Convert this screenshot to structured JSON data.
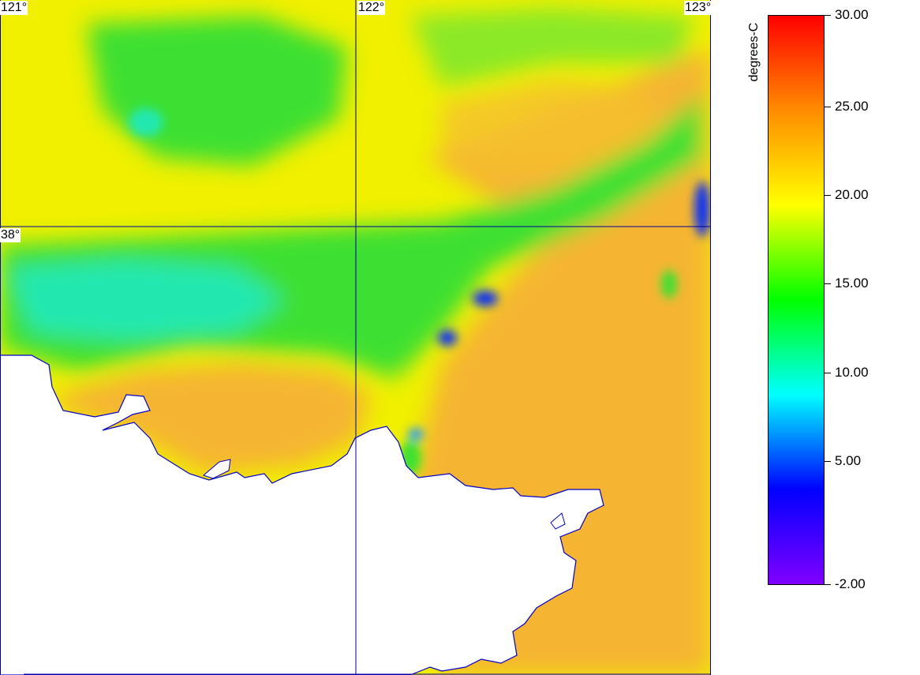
{
  "map": {
    "grid_labels": {
      "lon_121": "121°",
      "lon_122": "122°",
      "lon_123": "123°",
      "lat_38": "38°"
    },
    "colors": {
      "land": "#ffffff",
      "coastline": "#0000c8",
      "gridline": "#0000a0",
      "ocean_warm": "#f5b530",
      "ocean_mid": "#f0f000",
      "ocean_cool": "#3ee030",
      "ocean_cold": "#20e8b0",
      "upwelling": "#1030f0"
    }
  },
  "colorbar": {
    "units": "degrees-C",
    "ticks": [
      "30.00",
      "25.00",
      "20.00",
      "15.00",
      "10.00",
      "5.00",
      "-2.00"
    ],
    "range": [
      -2,
      30
    ],
    "gradient": [
      "#ff0000",
      "#ff8c00",
      "#ffff00",
      "#00ff00",
      "#00ffff",
      "#0000ff",
      "#8000ff"
    ]
  }
}
